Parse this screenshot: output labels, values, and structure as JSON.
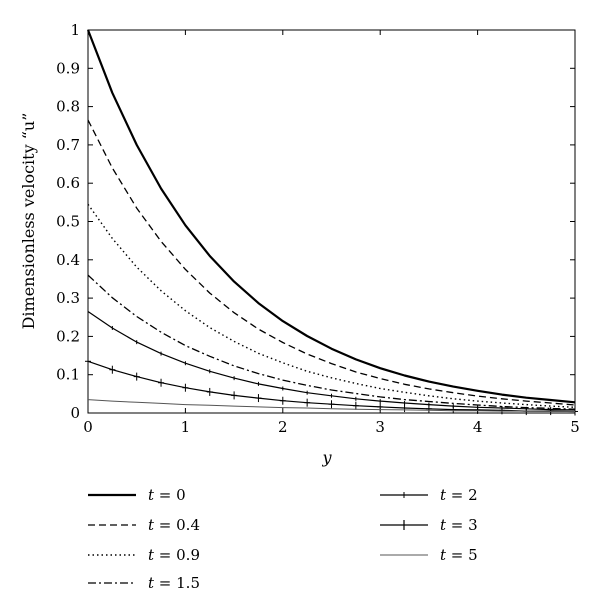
{
  "chart_data": {
    "type": "line",
    "xlabel": "y",
    "ylabel": "Dimensionless velocity “u”",
    "xlim": [
      0,
      5
    ],
    "ylim": [
      0,
      1
    ],
    "x_ticks": [
      "0",
      "1",
      "2",
      "3",
      "4",
      "5"
    ],
    "y_ticks": [
      "0",
      "0.1",
      "0.2",
      "0.3",
      "0.4",
      "0.5",
      "0.6",
      "0.7",
      "0.8",
      "0.9",
      "1"
    ],
    "grid": false,
    "legend_position": "bottom",
    "x": [
      0,
      0.25,
      0.5,
      0.75,
      1,
      1.25,
      1.5,
      1.75,
      2,
      2.25,
      2.5,
      2.75,
      3,
      3.25,
      3.5,
      3.75,
      4,
      4.25,
      4.5,
      4.75,
      5
    ],
    "series": [
      {
        "name": "t = 0",
        "style": "thick-solid",
        "values": [
          1.0,
          0.836,
          0.7,
          0.586,
          0.49,
          0.41,
          0.343,
          0.287,
          0.24,
          0.201,
          0.168,
          0.14,
          0.117,
          0.098,
          0.082,
          0.069,
          0.058,
          0.048,
          0.04,
          0.034,
          0.028
        ]
      },
      {
        "name": "t = 0.4",
        "style": "dashed",
        "values": [
          0.765,
          0.64,
          0.535,
          0.448,
          0.375,
          0.313,
          0.262,
          0.219,
          0.184,
          0.154,
          0.129,
          0.107,
          0.09,
          0.075,
          0.063,
          0.053,
          0.044,
          0.037,
          0.031,
          0.026,
          0.021
        ]
      },
      {
        "name": "t = 0.9",
        "style": "dotted",
        "values": [
          0.545,
          0.456,
          0.381,
          0.319,
          0.267,
          0.223,
          0.187,
          0.156,
          0.131,
          0.109,
          0.092,
          0.077,
          0.064,
          0.054,
          0.045,
          0.037,
          0.031,
          0.026,
          0.022,
          0.018,
          0.015
        ]
      },
      {
        "name": "t = 1.5",
        "style": "dashdot",
        "values": [
          0.36,
          0.301,
          0.252,
          0.211,
          0.176,
          0.148,
          0.123,
          0.103,
          0.086,
          0.072,
          0.06,
          0.051,
          0.042,
          0.035,
          0.03,
          0.025,
          0.021,
          0.017,
          0.014,
          0.012,
          0.01
        ]
      },
      {
        "name": "t = 2",
        "style": "solid-small-ticks",
        "values": [
          0.265,
          0.222,
          0.185,
          0.155,
          0.13,
          0.109,
          0.091,
          0.076,
          0.064,
          0.053,
          0.045,
          0.037,
          0.031,
          0.026,
          0.022,
          0.018,
          0.015,
          0.013,
          0.011,
          0.009,
          0.008
        ]
      },
      {
        "name": "t = 3",
        "style": "solid-plus-markers",
        "values": [
          0.135,
          0.113,
          0.095,
          0.079,
          0.066,
          0.055,
          0.046,
          0.039,
          0.032,
          0.027,
          0.023,
          0.019,
          0.016,
          0.013,
          0.011,
          0.009,
          0.008,
          0.007,
          0.005,
          0.005,
          0.004
        ]
      },
      {
        "name": "t = 5",
        "style": "thin-solid-gray",
        "values": [
          0.035,
          0.031,
          0.028,
          0.025,
          0.022,
          0.02,
          0.018,
          0.016,
          0.014,
          0.013,
          0.011,
          0.01,
          0.009,
          0.008,
          0.007,
          0.006,
          0.006,
          0.005,
          0.005,
          0.004,
          0.004
        ]
      }
    ]
  },
  "legend": {
    "t_symbol": "t",
    "items": [
      {
        "suffix": " = 0"
      },
      {
        "suffix": " = 0.4"
      },
      {
        "suffix": " = 0.9"
      },
      {
        "suffix": " = 1.5"
      },
      {
        "suffix": " = 2"
      },
      {
        "suffix": " = 3"
      },
      {
        "suffix": " = 5"
      }
    ]
  }
}
